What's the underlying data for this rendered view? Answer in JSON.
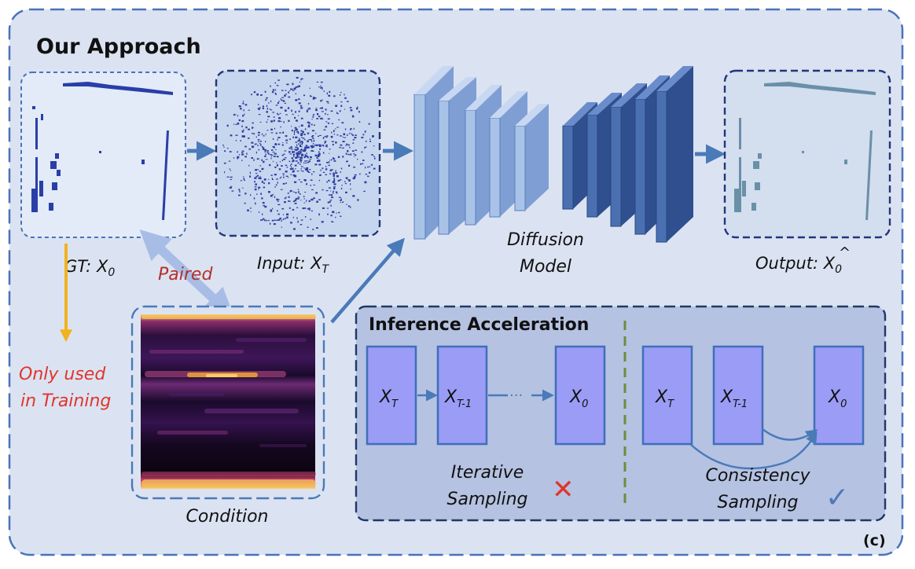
{
  "title": "Our Approach",
  "panel_tag": "(c)",
  "gt_label": {
    "prefix": "GT: ",
    "var": "X",
    "sub": "0"
  },
  "input_label": {
    "prefix": "Input: ",
    "var": "X",
    "sub": "T"
  },
  "output_label": {
    "prefix": "Output: ",
    "var": "X",
    "hat": "^",
    "sub": "0"
  },
  "model_label": {
    "line1": "Diffusion",
    "line2": "Model"
  },
  "paired_label": "Paired",
  "training_note": {
    "line1": "Only used",
    "line2": "in Training"
  },
  "condition_label": "Condition",
  "inference": {
    "title": "Inference Acceleration",
    "iterative": {
      "boxes": [
        {
          "var": "X",
          "sub": "T"
        },
        {
          "var": "X",
          "sub": "T-1"
        },
        {
          "var": "X",
          "sub": "0"
        }
      ],
      "ellipsis": "···",
      "label_line1": "Iterative",
      "label_line2": "Sampling",
      "status_mark": "✕"
    },
    "consistency": {
      "boxes": [
        {
          "var": "X",
          "sub": "T"
        },
        {
          "var": "X",
          "sub": "T-1"
        },
        {
          "var": "X",
          "sub": "0"
        }
      ],
      "label_line1": "Consistency",
      "label_line2": "Sampling",
      "status_mark": "✓"
    }
  },
  "colors": {
    "panel_bg": "#dbe3f2",
    "panel_border": "#4a72b8",
    "arrow": "#4a7ab8",
    "train_arrow": "#f2b21f",
    "red_text": "#e0352b",
    "paired_text": "#b5302a",
    "box_fill": "#9a9cf5",
    "box_border": "#3f6fba",
    "inference_bg": "#b5c2e2",
    "inference_border": "#1f3866",
    "encoder_face": "#a9c2e8",
    "decoder_face": "#4a70b2",
    "divider": "#6e8c3a"
  }
}
